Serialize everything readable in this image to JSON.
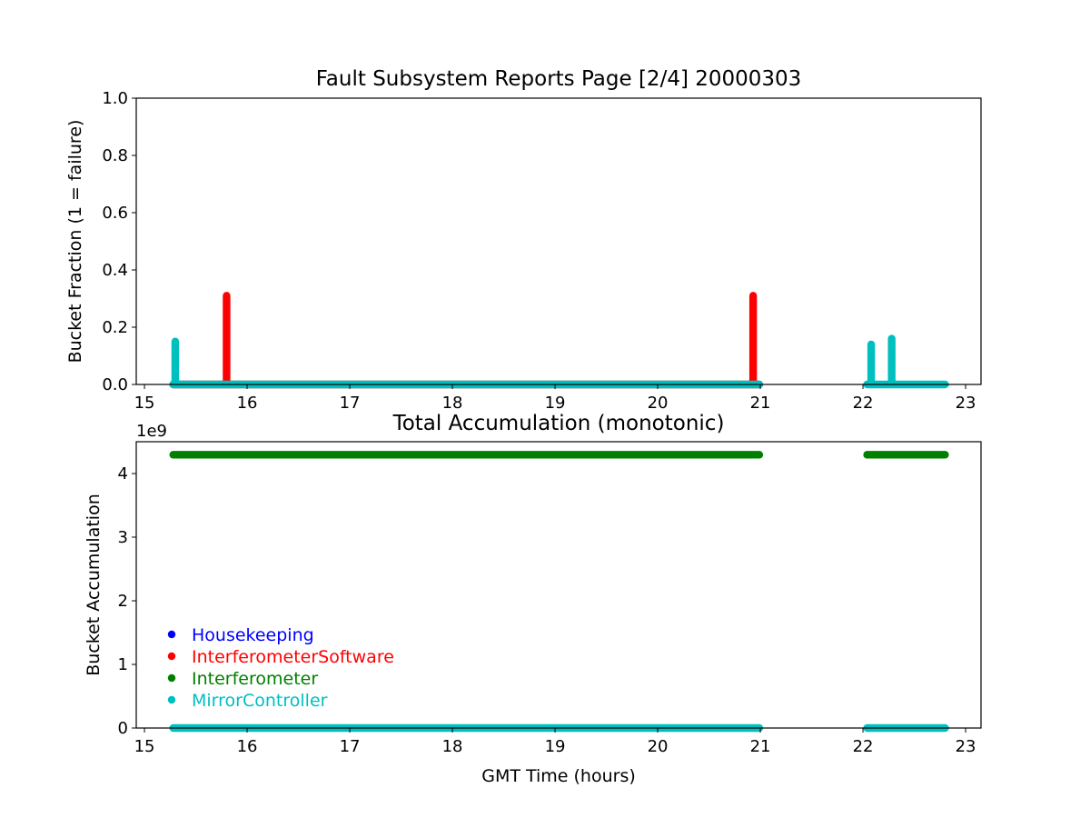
{
  "figure": {
    "background": "#ffffff"
  },
  "chart_data": [
    {
      "type": "scatter",
      "title": "Fault Subsystem Reports Page [2/4] 20000303",
      "xlabel": "",
      "ylabel": "Bucket Fraction (1 = failure)",
      "xlim": [
        14.92,
        23.15
      ],
      "ylim": [
        0,
        1.0
      ],
      "xticks": [
        15,
        16,
        17,
        18,
        19,
        20,
        21,
        22,
        23
      ],
      "yticks": [
        0.0,
        0.2,
        0.4,
        0.6,
        0.8,
        1.0
      ],
      "ytick_labels": [
        "0.0",
        "0.2",
        "0.4",
        "0.6",
        "0.8",
        "1.0"
      ],
      "grid": false,
      "series": [
        {
          "name": "InterferometerSoftware",
          "color": "#ff0000",
          "segments": [
            [
              15.28,
              20.99,
              0.0
            ]
          ],
          "bars": [
            {
              "x": 15.8,
              "y_min": 0.0,
              "y_max": 0.31
            },
            {
              "x": 20.93,
              "y_min": 0.0,
              "y_max": 0.31
            }
          ]
        },
        {
          "name": "MirrorController",
          "color": "#00bfbf",
          "segments": [
            [
              15.28,
              20.99,
              0.0
            ],
            [
              22.04,
              22.8,
              0.0
            ]
          ],
          "bars": [
            {
              "x": 15.3,
              "y_min": 0.0,
              "y_max": 0.15
            },
            {
              "x": 22.08,
              "y_min": 0.0,
              "y_max": 0.14
            },
            {
              "x": 22.28,
              "y_min": 0.0,
              "y_max": 0.16
            }
          ]
        }
      ]
    },
    {
      "type": "scatter",
      "title": "Total Accumulation (monotonic)",
      "xlabel": "GMT Time (hours)",
      "ylabel": "Bucket Accumulation",
      "offset_label": "1e9",
      "xlim": [
        14.92,
        23.15
      ],
      "ylim": [
        0,
        4.5
      ],
      "xticks": [
        15,
        16,
        17,
        18,
        19,
        20,
        21,
        22,
        23
      ],
      "yticks": [
        0,
        1,
        2,
        3,
        4
      ],
      "ytick_labels": [
        "0",
        "1",
        "2",
        "3",
        "4"
      ],
      "grid": false,
      "legend_position": "lower-left",
      "series": [
        {
          "name": "Housekeeping",
          "color": "#0000ff",
          "segments": []
        },
        {
          "name": "InterferometerSoftware",
          "color": "#ff0000",
          "segments": []
        },
        {
          "name": "Interferometer",
          "color": "#008000",
          "segments": [
            [
              15.28,
              20.99,
              4.295
            ],
            [
              22.04,
              22.8,
              4.295
            ]
          ]
        },
        {
          "name": "MirrorController",
          "color": "#00bfbf",
          "segments": [
            [
              15.28,
              20.99,
              0.0
            ],
            [
              22.04,
              22.8,
              0.0
            ]
          ]
        }
      ]
    }
  ]
}
